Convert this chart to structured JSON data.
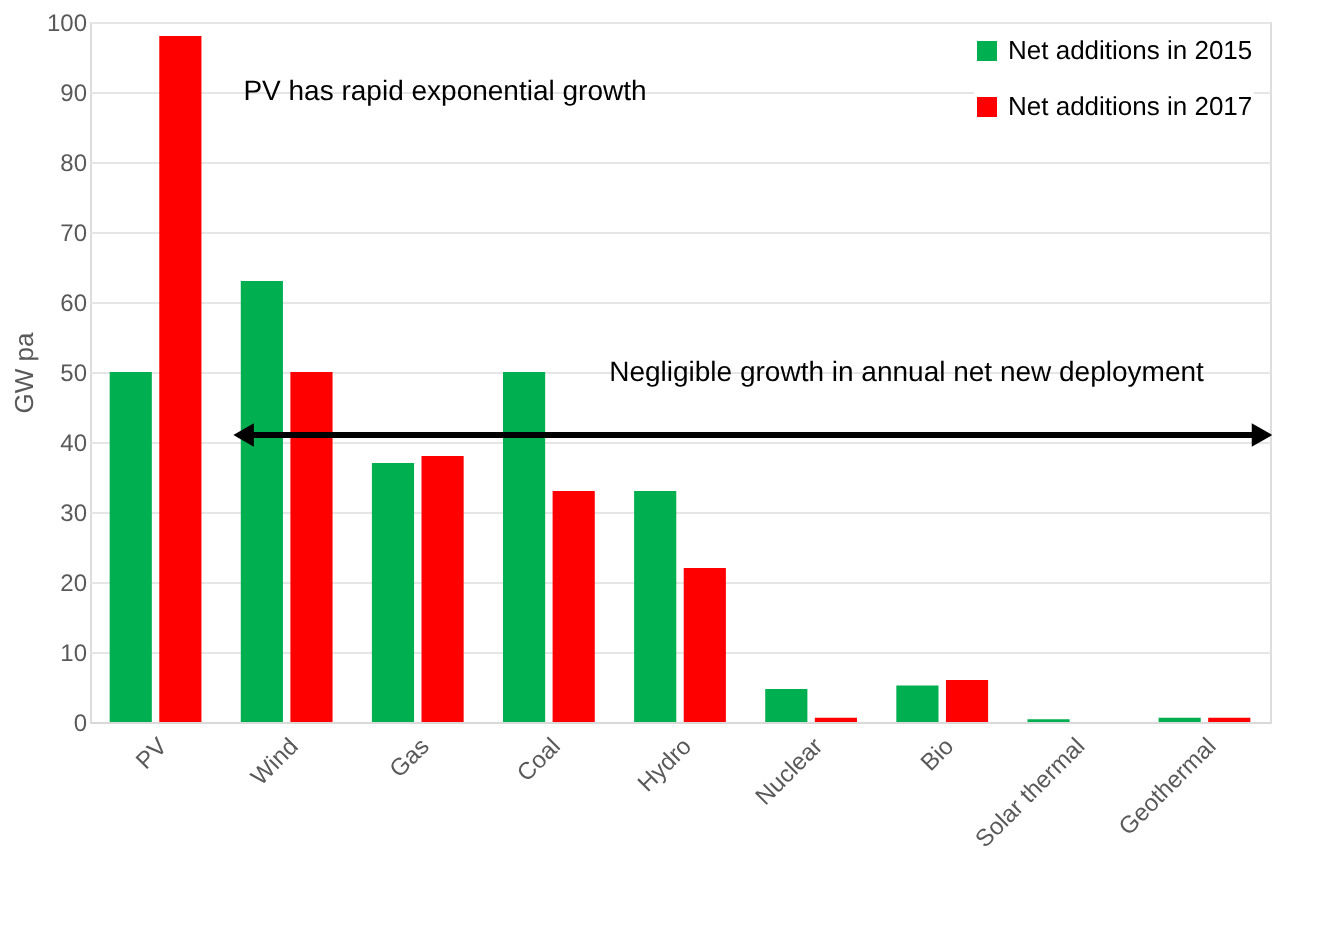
{
  "chart_data": {
    "type": "bar",
    "ylabel": "GW pa",
    "categories": [
      "PV",
      "Wind",
      "Gas",
      "Coal",
      "Hydro",
      "Nuclear",
      "Bio",
      "Solar thermal",
      "Geothermal"
    ],
    "series": [
      {
        "name": "Net additions in 2015",
        "color": "#00b050",
        "values": [
          50,
          63,
          37,
          50,
          33,
          4.7,
          5.2,
          0.4,
          0.6
        ]
      },
      {
        "name": "Net additions in 2017",
        "color": "#ff0000",
        "values": [
          98,
          50,
          38,
          33,
          22,
          0.6,
          6,
          0,
          0.6
        ]
      }
    ],
    "ylim": [
      0,
      100
    ],
    "yticks": [
      0,
      10,
      20,
      30,
      40,
      50,
      60,
      70,
      80,
      90,
      100
    ],
    "grid": "y",
    "legend": "top right",
    "ref_lines": [
      {
        "axis": "y",
        "value": 41,
        "label": "Negligible growth in annual net new deployment",
        "color": "#000000"
      }
    ],
    "annotations": [
      "PV has rapid exponential growth"
    ]
  }
}
